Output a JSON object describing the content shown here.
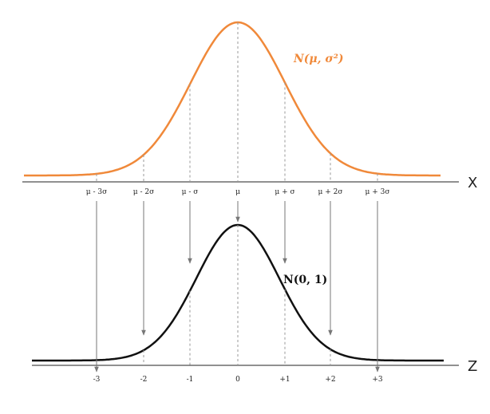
{
  "x_axis": {
    "name": "X",
    "labels": [
      "μ - 3σ",
      "μ - 2σ",
      "μ - σ",
      "μ",
      "μ + σ",
      "μ + 2σ",
      "μ + 3σ"
    ]
  },
  "z_axis": {
    "name": "Z",
    "labels": [
      "-3",
      "-2",
      "-1",
      "0",
      "+1",
      "+2",
      "+3"
    ]
  },
  "curves": {
    "general": "N(μ, σ²)",
    "standard": "N(0, 1)"
  }
}
